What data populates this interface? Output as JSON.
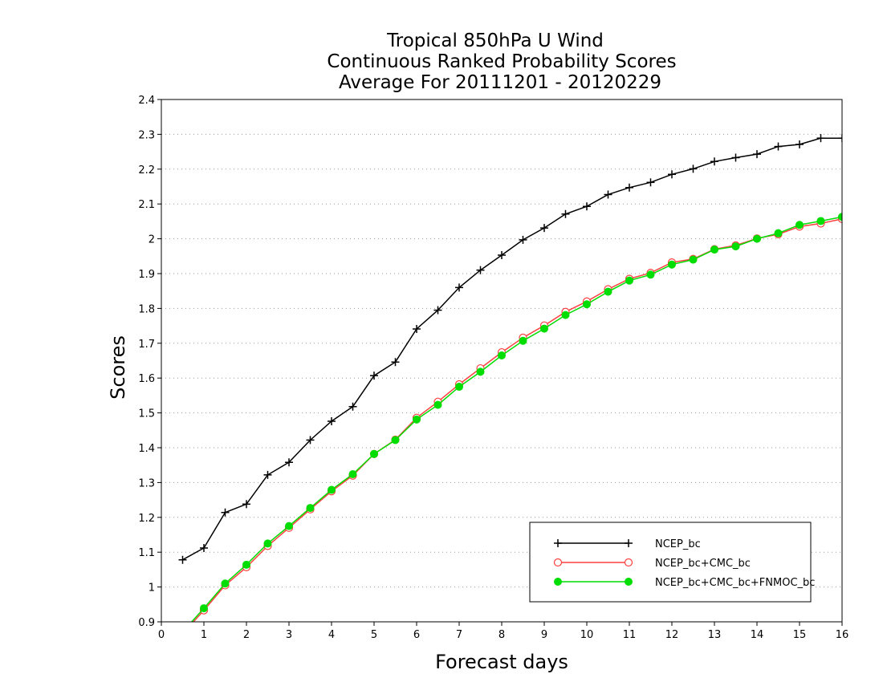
{
  "chart_data": {
    "type": "line",
    "title_lines": [
      "Tropical 850hPa U Wind",
      "Continuous Ranked Probability Scores",
      "Average For 20111201 - 20120229"
    ],
    "xlabel": "Forecast days",
    "ylabel": "Scores",
    "xlim": [
      0,
      16
    ],
    "ylim": [
      0.9,
      2.4
    ],
    "x_ticks": [
      "0",
      "1",
      "2",
      "3",
      "4",
      "5",
      "6",
      "7",
      "8",
      "9",
      "10",
      "11",
      "12",
      "13",
      "14",
      "15",
      "16"
    ],
    "y_ticks": [
      "0.9",
      "1",
      "1.1",
      "1.2",
      "1.3",
      "1.4",
      "1.5",
      "1.6",
      "1.7",
      "1.8",
      "1.9",
      "2",
      "2.1",
      "2.2",
      "2.3",
      "2.4"
    ],
    "grid": "horizontal dotted",
    "legend_position": "bottom-right",
    "x": [
      0.5,
      1,
      1.5,
      2,
      2.5,
      3,
      3.5,
      4,
      4.5,
      5,
      5.5,
      6,
      6.5,
      7,
      7.5,
      8,
      8.5,
      9,
      9.5,
      10,
      10.5,
      11,
      11.5,
      12,
      12.5,
      13,
      13.5,
      14,
      14.5,
      15,
      15.5,
      16
    ],
    "series": [
      {
        "name": "NCEP_bc",
        "color": "#000000",
        "marker": "plus",
        "values": [
          1.078,
          1.112,
          1.214,
          1.238,
          1.322,
          1.358,
          1.422,
          1.476,
          1.518,
          1.607,
          1.646,
          1.741,
          1.795,
          1.86,
          1.91,
          1.953,
          1.997,
          2.031,
          2.071,
          2.093,
          2.127,
          2.147,
          2.162,
          2.185,
          2.201,
          2.222,
          2.233,
          2.243,
          2.265,
          2.271,
          2.289,
          2.289
        ]
      },
      {
        "name": "NCEP_bc+CMC_bc",
        "color": "#ff4040",
        "marker": "open-circle",
        "values": [
          0.866,
          0.933,
          1.005,
          1.057,
          1.118,
          1.17,
          1.223,
          1.275,
          1.32,
          1.382,
          1.423,
          1.486,
          1.532,
          1.582,
          1.628,
          1.674,
          1.716,
          1.751,
          1.79,
          1.82,
          1.855,
          1.885,
          1.902,
          1.932,
          1.942,
          1.97,
          1.981,
          2.001,
          2.013,
          2.035,
          2.044,
          2.057
        ]
      },
      {
        "name": "NCEP_bc+CMC_bc+FNMOC_bc",
        "color": "#00dd00",
        "marker": "filled-circle",
        "values": [
          0.871,
          0.939,
          1.01,
          1.064,
          1.125,
          1.175,
          1.227,
          1.279,
          1.324,
          1.382,
          1.422,
          1.481,
          1.523,
          1.575,
          1.618,
          1.665,
          1.707,
          1.742,
          1.781,
          1.812,
          1.848,
          1.88,
          1.897,
          1.926,
          1.94,
          1.969,
          1.978,
          2.0,
          2.016,
          2.04,
          2.051,
          2.063
        ]
      }
    ]
  }
}
